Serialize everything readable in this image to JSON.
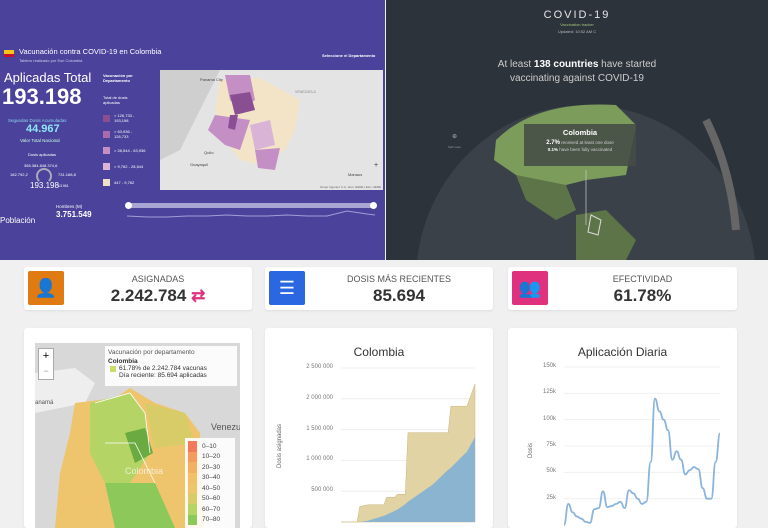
{
  "vacunacion_panel": {
    "title": "Vacunación contra COVID-19 en Colombia",
    "subtitle": "Tablero realizado por Esri Colombia",
    "select_label": "Seleccione el Departamento",
    "aplicadas_label": "Aplicadas Total",
    "aplicadas_value": "193.198",
    "segundas_label": "Segundas Dosis Acumuladas",
    "segundas_value": "44.967",
    "valor_label": "Valor Total Nacional",
    "dosis_label": "Dosis aplicadas",
    "gauge_top": "365.384.848.374,6",
    "gauge_left": "182.792,2",
    "gauge_right": "731.168,8",
    "gauge_value": "193.198",
    "gauge_small": "13.961",
    "hombres_label": "Hombres (M)",
    "hombres_value": "3.751.549",
    "poblacion_label": "Población",
    "legend_title": "Vacunación por Departamento",
    "legend_sub": "Total de dosis aplicadas",
    "legend": [
      {
        "label": "> 126,733 - 193,198",
        "color": "#8a4f92"
      },
      {
        "label": "> 63,936 - 126,733",
        "color": "#a96aae"
      },
      {
        "label": "> 28,544 - 63,936",
        "color": "#c48fc4"
      },
      {
        "label": "> 9,762 - 28,544",
        "color": "#d9b4d6"
      },
      {
        "label": "447 - 9,762",
        "color": "#f0e0c8"
      }
    ],
    "map_labels": {
      "panama": "Panama City",
      "venezuela": "VENEZUELA",
      "quito": "Quito",
      "ecuador": "Guayaquil",
      "manaus": "Manaus"
    },
    "attribution": "Grupo Ingenier C.A., Esri, HERE | Esri, HERE"
  },
  "tracker_panel": {
    "title": "COVID-19",
    "subtitle": "Vaccination tracker",
    "updated": "Updated: 10:52 AM C",
    "headline_pre": "At least ",
    "headline_bold": "138 countries",
    "headline_post": " have started vaccinating against COVID-19",
    "tooltip": {
      "country": "Colombia",
      "pct1": "2.7%",
      "text1": " received at least one dose",
      "pct2": "0.1%",
      "text2": " have been fully vaccinated"
    },
    "side_label": "Split view"
  },
  "kpis": [
    {
      "label": "ASIGNADAS",
      "value": "2.242.784",
      "icon": "user-plus-icon",
      "color": "#e07b12"
    },
    {
      "label": "DOSIS MÁS RECIENTES",
      "value": "85.694",
      "icon": "server-icon",
      "color": "#2a67e0"
    },
    {
      "label": "EFECTIVIDAD",
      "value": "61.78%",
      "icon": "users-icon",
      "color": "#e0317f"
    }
  ],
  "dept_map": {
    "info_title": "Vacunación por departamento",
    "info_country": "Colombia",
    "info_line1": "61.78% de 2.242.784 vacunas",
    "info_line2": "Día reciente: 85.694 aplicadas",
    "zoom_in": "+",
    "zoom_out": "−",
    "label_venezuela": "Venezu",
    "label_colombia": "Colombia",
    "label_panama": "anamá",
    "legend": [
      {
        "label": "0–10",
        "color": "#f4785a"
      },
      {
        "label": "10–20",
        "color": "#f49a5c"
      },
      {
        "label": "20–30",
        "color": "#f4b060"
      },
      {
        "label": "30–40",
        "color": "#f2c066"
      },
      {
        "label": "40–50",
        "color": "#eec46c"
      },
      {
        "label": "50–60",
        "color": "#d8cc68"
      },
      {
        "label": "60–70",
        "color": "#b4d466"
      },
      {
        "label": "70–80",
        "color": "#8cc85a"
      }
    ]
  },
  "chart_data": [
    {
      "type": "area",
      "title": "Colombia",
      "ylabel": "Dosis asignadas",
      "ylim": [
        0,
        2500000
      ],
      "yticks": [
        "2 500 000",
        "2 000 000",
        "1 500 000",
        "1 000 000",
        "500 000"
      ],
      "colors": [
        "#e2d3a4",
        "#8ab4cf"
      ],
      "x": [
        0,
        6,
        7,
        10,
        16,
        17,
        20,
        21,
        24,
        25,
        34,
        35,
        40,
        41,
        46,
        47,
        50
      ],
      "series": [
        {
          "values": [
            0,
            0,
            250000,
            280000,
            280000,
            400000,
            400000,
            450000,
            450000,
            1450000,
            1450000,
            1450000,
            1450000,
            1880000,
            1880000,
            1880000,
            2240000
          ]
        },
        {
          "values": [
            0,
            0,
            0,
            20000,
            100000,
            120000,
            180000,
            200000,
            290000,
            330000,
            600000,
            640000,
            850000,
            880000,
            1100000,
            1140000,
            1380000
          ]
        }
      ]
    },
    {
      "type": "line",
      "title": "Aplicación Diaria",
      "ylabel": "Dosis",
      "ylim": [
        0,
        150000
      ],
      "yticks": [
        "150k",
        "125k",
        "100k",
        "75k",
        "50k",
        "25k"
      ],
      "color": "#8ab4dc",
      "values": [
        0,
        20000,
        12000,
        8000,
        6000,
        3000,
        2000,
        15000,
        16000,
        32000,
        17000,
        18000,
        20000,
        22000,
        16000,
        33000,
        30000,
        25000,
        20000,
        22000,
        60000,
        120000,
        108000,
        100000,
        90000,
        62000,
        70000,
        62000,
        48000,
        52000,
        55000,
        53000,
        35000,
        25000,
        25000,
        60000,
        87000
      ]
    }
  ]
}
